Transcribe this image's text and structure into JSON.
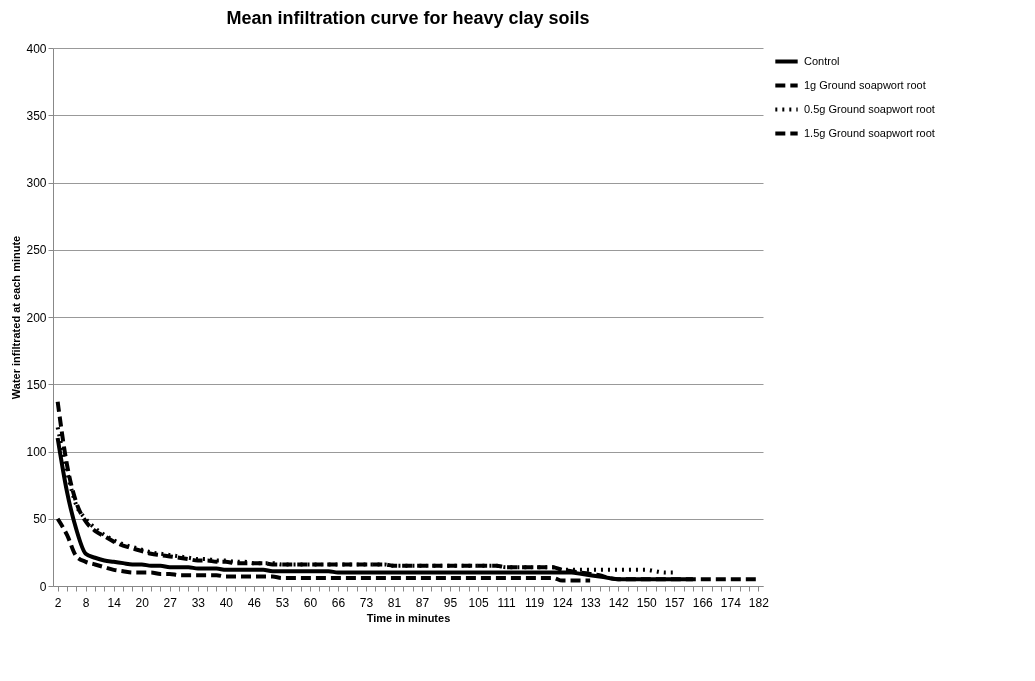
{
  "chart_data": {
    "type": "line",
    "title": "Mean infiltration curve for heavy clay soils",
    "xlabel": "Time in minutes",
    "ylabel": "Water infiltrated  at each minute",
    "categories": [
      "2",
      null,
      null,
      "8",
      null,
      null,
      "14",
      null,
      null,
      "20",
      null,
      null,
      "27",
      null,
      null,
      "33",
      null,
      null,
      "40",
      null,
      null,
      "46",
      null,
      null,
      "53",
      null,
      null,
      "60",
      null,
      null,
      "66",
      null,
      null,
      "73",
      null,
      null,
      "81",
      null,
      null,
      "87",
      null,
      null,
      "95",
      null,
      null,
      "105",
      null,
      null,
      "111",
      null,
      null,
      "119",
      null,
      null,
      "124",
      null,
      null,
      "133",
      null,
      null,
      "142",
      null,
      null,
      "150",
      null,
      null,
      "157",
      null,
      null,
      "166",
      null,
      null,
      "174",
      null,
      null,
      "182"
    ],
    "series": [
      {
        "name": "Control",
        "color": "#000000",
        "line_style": "solid",
        "values": [
          110,
          70,
          42,
          24,
          21,
          19,
          18,
          17,
          16,
          16,
          15,
          15,
          14,
          14,
          14,
          13,
          13,
          13,
          12,
          12,
          12,
          12,
          12,
          11,
          11,
          11,
          11,
          11,
          11,
          11,
          10,
          10,
          10,
          10,
          10,
          10,
          10,
          10,
          10,
          10,
          10,
          10,
          10,
          10,
          10,
          10,
          10,
          10,
          10,
          10,
          10,
          10,
          10,
          10,
          10,
          10,
          9,
          8,
          7,
          6,
          5,
          5,
          5,
          5,
          5,
          5,
          5,
          5,
          5,
          null,
          null,
          null,
          null,
          null,
          null,
          null
        ]
      },
      {
        "name": "1g Ground  soapwort  root",
        "color": "#000000",
        "line_style": "dashed",
        "values": [
          137,
          90,
          62,
          48,
          41,
          37,
          33,
          30,
          28,
          26,
          24,
          23,
          22,
          21,
          20,
          19,
          19,
          18,
          18,
          17,
          17,
          17,
          17,
          16,
          16,
          16,
          16,
          16,
          16,
          16,
          16,
          16,
          16,
          16,
          16,
          16,
          15,
          15,
          15,
          15,
          15,
          15,
          15,
          15,
          15,
          15,
          15,
          15,
          14,
          14,
          14,
          14,
          14,
          14,
          12,
          11,
          10,
          9,
          8,
          6,
          5,
          5,
          5,
          5,
          5,
          5,
          5,
          5,
          5,
          5,
          5,
          5,
          5,
          5,
          5,
          5
        ]
      },
      {
        "name": "0.5g Ground  soapwort root",
        "color": "#000000",
        "line_style": "dotted",
        "values": [
          118,
          85,
          60,
          50,
          43,
          38,
          34,
          31,
          29,
          27,
          25,
          24,
          23,
          22,
          21,
          20,
          20,
          19,
          19,
          18,
          18,
          17,
          17,
          17,
          16,
          16,
          16,
          16,
          16,
          16,
          16,
          16,
          16,
          16,
          16,
          16,
          15,
          15,
          15,
          15,
          15,
          15,
          15,
          15,
          15,
          15,
          15,
          15,
          14,
          14,
          14,
          14,
          14,
          14,
          12,
          12,
          12,
          12,
          12,
          12,
          12,
          12,
          12,
          12,
          11,
          10,
          10,
          null,
          null,
          null,
          null,
          null,
          null,
          null,
          null,
          null
        ]
      },
      {
        "name": "1.5g Ground  soapwort root",
        "color": "#000000",
        "line_style": "dashed",
        "values": [
          50,
          38,
          22,
          18,
          16,
          14,
          12,
          11,
          10,
          10,
          10,
          9,
          9,
          8,
          8,
          8,
          8,
          8,
          7,
          7,
          7,
          7,
          7,
          7,
          6,
          6,
          6,
          6,
          6,
          6,
          6,
          6,
          6,
          6,
          6,
          6,
          6,
          6,
          6,
          6,
          6,
          6,
          6,
          6,
          6,
          6,
          6,
          6,
          6,
          6,
          6,
          6,
          6,
          6,
          4,
          4,
          4,
          4,
          null,
          null,
          null,
          null,
          null,
          null,
          null,
          null,
          null,
          null,
          null,
          null,
          null,
          null,
          null,
          null,
          null,
          null
        ]
      }
    ],
    "ylim": [
      0,
      400
    ],
    "yticks": [
      0,
      50,
      100,
      150,
      200,
      250,
      300,
      350,
      400
    ],
    "grid": "y",
    "legend": "right"
  }
}
